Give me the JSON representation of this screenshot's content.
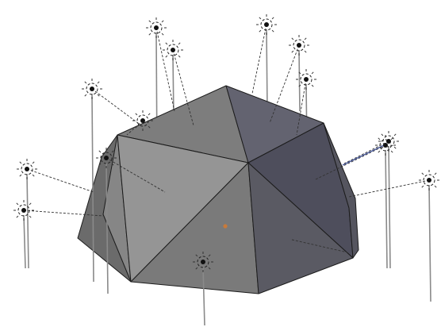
{
  "viewport": {
    "background": "#ffffff"
  },
  "mesh": {
    "colors": {
      "top_left": "#7d7d7d",
      "top_right": "#636370",
      "right": "#4e4e5c",
      "right_lower": "#55555f",
      "left_outer": "#6b6b6b",
      "left_mid": "#868686",
      "front_left": "#959595",
      "front_center": "#7a7a7a",
      "front_right": "#5a5a63",
      "bottom_center": "#6a6a6a",
      "edge": "#1a1a1a"
    },
    "origin_marker_color": "#c87a3a"
  },
  "lamps": {
    "count": 14,
    "icon": "point-lamp-icon",
    "color": "#111111"
  }
}
